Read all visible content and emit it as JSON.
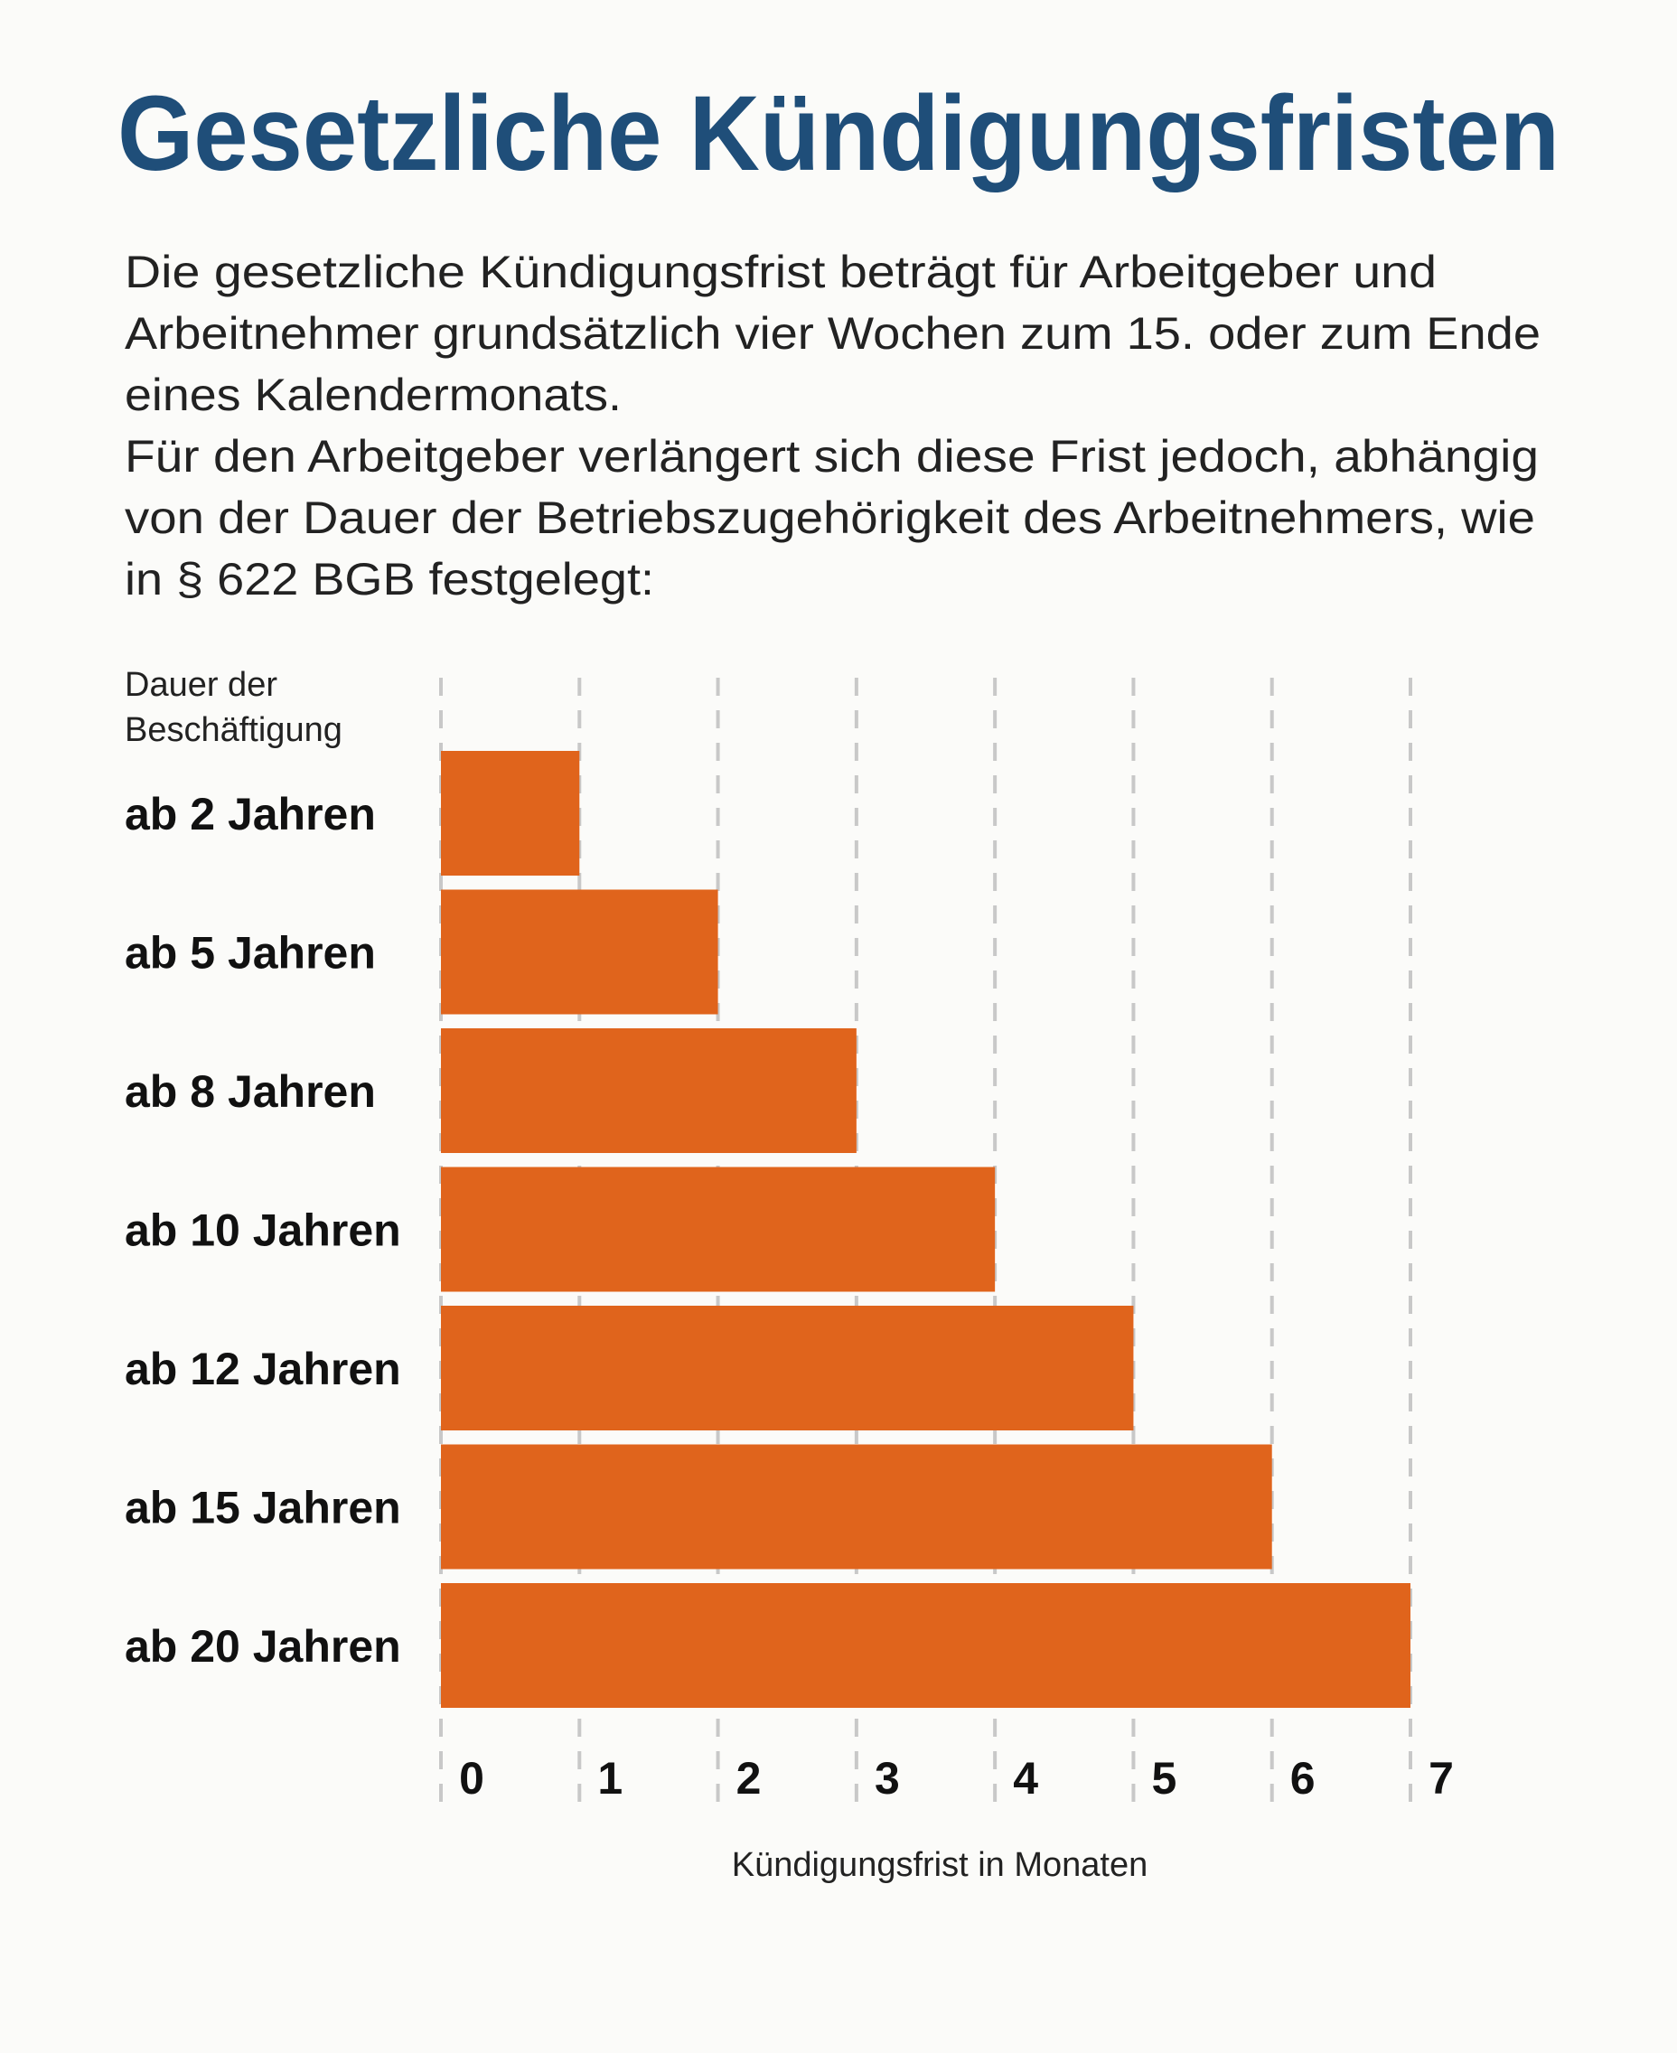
{
  "title": "Gesetzliche Kündigungsfristen",
  "intro_lines": [
    "Die gesetzliche Kündigungsfrist beträgt für Arbeitgeber und",
    "Arbeitnehmer grundsätzlich vier Wochen zum 15. oder zum Ende",
    "eines Kalendermonats.",
    "Für den Arbeitgeber verlängert sich diese Frist jedoch, abhängig",
    "von der Dauer der Betriebszugehörigkeit des Arbeitnehmers, wie",
    "in § 622 BGB festgelegt:"
  ],
  "colors": {
    "title": "#1f4e79",
    "bar": "#e0641c",
    "grid": "#c8c8c8",
    "background": "#fbfbf9"
  },
  "chart_data": {
    "type": "bar",
    "orientation": "horizontal",
    "ylabel_lines": [
      "Dauer der",
      "Beschäftigung"
    ],
    "xlabel": "Kündigungsfrist in Monaten",
    "categories": [
      "ab 2 Jahren",
      "ab 5 Jahren",
      "ab 8 Jahren",
      "ab 10 Jahren",
      "ab 12 Jahren",
      "ab 15 Jahren",
      "ab 20 Jahren"
    ],
    "values": [
      1,
      2,
      3,
      4,
      5,
      6,
      7
    ],
    "xticks": [
      "0",
      "1",
      "2",
      "3",
      "4",
      "5",
      "6",
      "7"
    ],
    "xlim": [
      0,
      7
    ],
    "grid": "vertical dashed"
  }
}
